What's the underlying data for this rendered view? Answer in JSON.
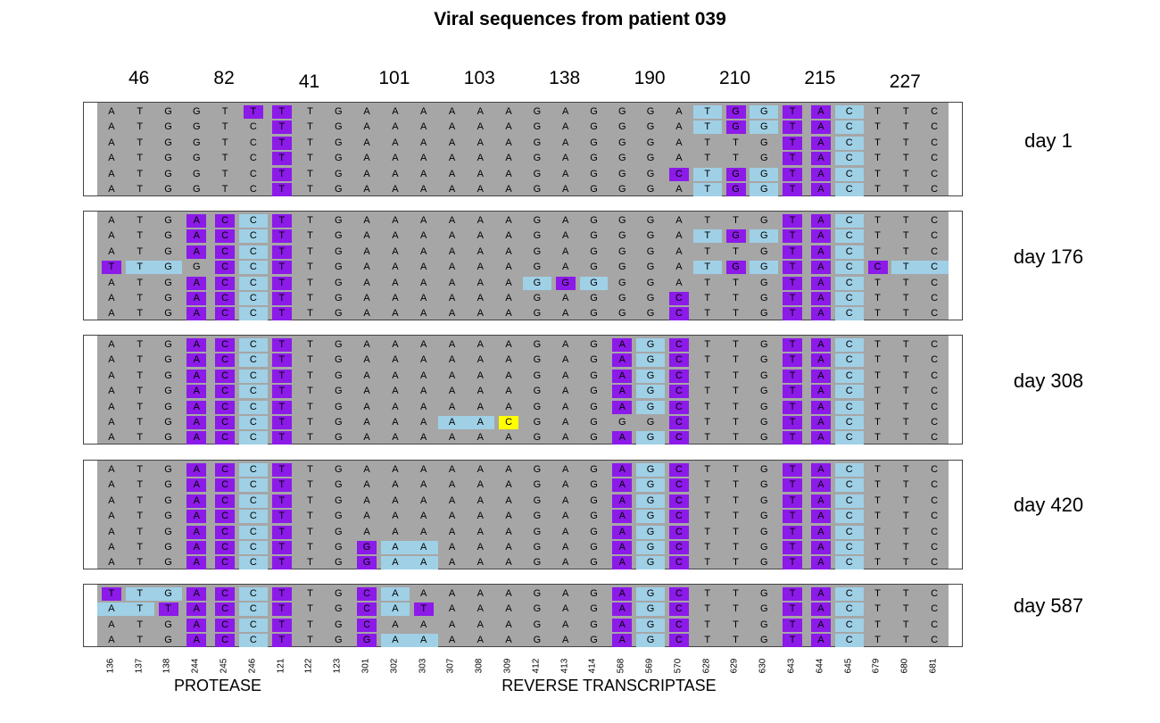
{
  "title": "Viral sequences from patient 039",
  "codons": [
    "46",
    "82",
    "41",
    "101",
    "103",
    "138",
    "190",
    "210",
    "215",
    "227"
  ],
  "genes": [
    "PROTEASE",
    "REVERSE TRANSCRIPTASE"
  ],
  "positions": [
    "136",
    "137",
    "138",
    "244",
    "245",
    "246",
    "121",
    "122",
    "123",
    "301",
    "302",
    "303",
    "307",
    "308",
    "309",
    "412",
    "413",
    "414",
    "568",
    "569",
    "570",
    "628",
    "629",
    "630",
    "643",
    "644",
    "645",
    "679",
    "680",
    "681"
  ],
  "colors": {
    "background": "#a6a6a6",
    "substitution": "#8c1ae8",
    "flank": "#9fd0e6",
    "rare": "#ffff00"
  },
  "panels": [
    {
      "label": "day 1",
      "rows": [
        "ATGGT[T]|[T]TG|AAA|AAA|GAG|GGA|{T}[G]{G}|[T][A]{C}|TTC",
        "ATGGTC|[T]TG|AAA|AAA|GAG|GGA|{T}[G]{G}|[T][A]{C}|TTC",
        "ATGGTC|[T]TG|AAA|AAA|GAG|GGA|TTG|[T][A]{C}|TTC",
        "ATGGTC|[T]TG|AAA|AAA|GAG|GGA|TTG|[T][A]{C}|TTC",
        "ATGGTC|[T]TG|AAA|AAA|GAG|GG[C]|{T}[G]{G}|[T][A]{C}|TTC",
        "ATGGTC|[T]TG|AAA|AAA|GAG|GGA|{T}[G]{G}|[T][A]{C}|TTC"
      ]
    },
    {
      "label": "day 176",
      "rows": [
        "ATG[A][C]{C}|[T]TG|AAA|AAA|GAG|GGA|TTG|[T][A]{C}|TTC",
        "ATG[A][C]{C}|[T]TG|AAA|AAA|GAG|GGA|{T}[G]{G}|[T][A]{C}|TTC",
        "ATG[A][C]{C}|[T]TG|AAA|AAA|GAG|GGA|TTG|[T][A]{C}|TTC",
        "[T]{T}{G}G[C]{C}|[T]TG|AAA|AAA|GAG|GGA|{T}[G]{G}|[T][A]{C}|[C]{T}{C}",
        "ATG[A][C]{C}|[T]TG|AAA|AAA|{G}[G]{G}|GGA|TTG|[T][A]{C}|TTC",
        "ATG[A][C]{C}|[T]TG|AAA|AAA|GAG|GG[C]|TTG|[T][A]{C}|TTC",
        "ATG[A][C]{C}|[T]TG|AAA|AAA|GAG|GG[C]|TTG|[T][A]{C}|TTC"
      ]
    },
    {
      "label": "day 308",
      "rows": [
        "ATG[A][C]{C}|[T]TG|AAA|AAA|GAG|[A]{G}[C]|TTG|[T][A]{C}|TTC",
        "ATG[A][C]{C}|[T]TG|AAA|AAA|GAG|[A]{G}[C]|TTG|[T][A]{C}|TTC",
        "ATG[A][C]{C}|[T]TG|AAA|AAA|GAG|[A]{G}[C]|TTG|[T][A]{C}|TTC",
        "ATG[A][C]{C}|[T]TG|AAA|AAA|GAG|[A]{G}[C]|TTG|[T][A]{C}|TTC",
        "ATG[A][C]{C}|[T]TG|AAA|AAA|GAG|[A]{G}[C]|TTG|[T][A]{C}|TTC",
        "ATG[A][C]{C}|[T]TG|AAA|{A}{A}<C>|GAG|GG[C]|TTG|[T][A]{C}|TTC",
        "ATG[A][C]{C}|[T]TG|AAA|AAA|GAG|[A]{G}[C]|TTG|[T][A]{C}|TTC"
      ]
    },
    {
      "label": "day 420",
      "rows": [
        "ATG[A][C]{C}|[T]TG|AAA|AAA|GAG|[A]{G}[C]|TTG|[T][A]{C}|TTC",
        "ATG[A][C]{C}|[T]TG|AAA|AAA|GAG|[A]{G}[C]|TTG|[T][A]{C}|TTC",
        "ATG[A][C]{C}|[T]TG|AAA|AAA|GAG|[A]{G}[C]|TTG|[T][A]{C}|TTC",
        "ATG[A][C]{C}|[T]TG|AAA|AAA|GAG|[A]{G}[C]|TTG|[T][A]{C}|TTC",
        "ATG[A][C]{C}|[T]TG|AAA|AAA|GAG|[A]{G}[C]|TTG|[T][A]{C}|TTC",
        "ATG[A][C]{C}|[T]TG|[G]{A}{A}|AAA|GAG|[A]{G}[C]|TTG|[T][A]{C}|TTC",
        "ATG[A][C]{C}|[T]TG|[G]{A}{A}|AAA|GAG|[A]{G}[C]|TTG|[T][A]{C}|TTC"
      ]
    },
    {
      "label": "day 587",
      "rows": [
        "[T]{T}{G}[A][C]{C}|[T]TG|[C]{A}A|AAA|GAG|[A]{G}[C]|TTG|[T][A]{C}|TTC",
        "{A}{T}[T][A][C]{C}|[T]TG|[C]{A}[T]|AAA|GAG|[A]{G}[C]|TTG|[T][A]{C}|TTC",
        "ATG[A][C]{C}|[T]TG|[C]AA|AAA|GAG|[A]{G}[C]|TTG|[T][A]{C}|TTC",
        "ATG[A][C]{C}|[T]TG|[G]{A}{A}|AAA|GAG|[A]{G}[C]|TTG|[T][A]{C}|TTC"
      ]
    }
  ]
}
